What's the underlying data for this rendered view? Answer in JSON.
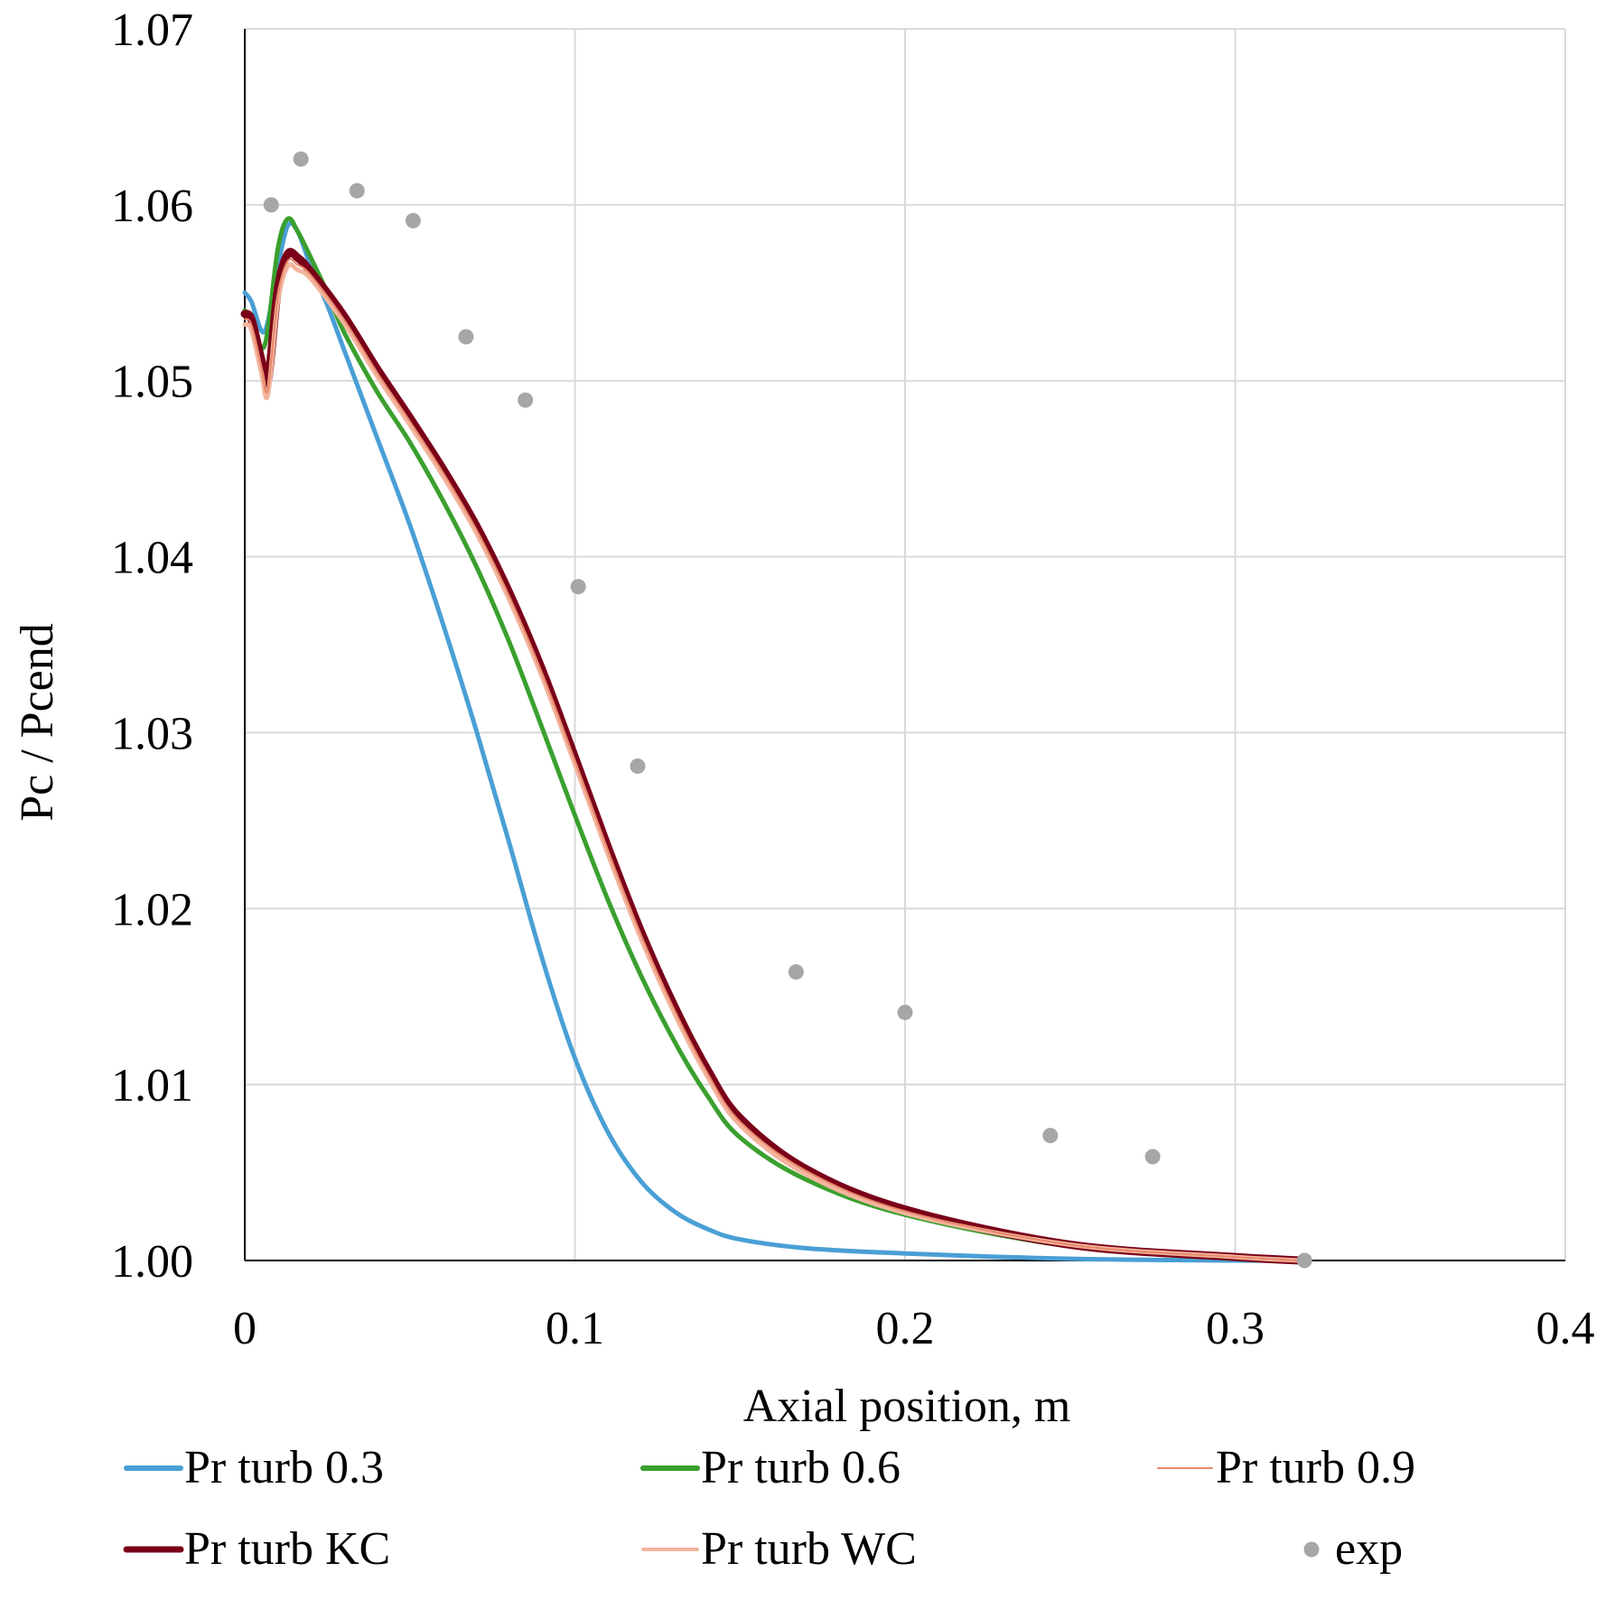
{
  "chart_data": {
    "type": "line",
    "title": "",
    "xlabel": "Axial position, m",
    "ylabel": "Pc / Pcend",
    "xlim": [
      0,
      0.4
    ],
    "ylim": [
      1.0,
      1.07
    ],
    "x_ticks": [
      {
        "value": 0,
        "label": "0"
      },
      {
        "value": 0.1,
        "label": "0.1"
      },
      {
        "value": 0.2,
        "label": "0.2"
      },
      {
        "value": 0.3,
        "label": "0.3"
      },
      {
        "value": 0.4,
        "label": "0.4"
      }
    ],
    "y_ticks": [
      {
        "value": 1.0,
        "label": "1.00"
      },
      {
        "value": 1.01,
        "label": "1.01"
      },
      {
        "value": 1.02,
        "label": "1.02"
      },
      {
        "value": 1.03,
        "label": "1.03"
      },
      {
        "value": 1.04,
        "label": "1.04"
      },
      {
        "value": 1.05,
        "label": "1.05"
      },
      {
        "value": 1.06,
        "label": "1.06"
      },
      {
        "value": 1.07,
        "label": "1.07"
      }
    ],
    "grid": true,
    "legend_position": "bottom",
    "series": [
      {
        "name": "Pr turb 0.3",
        "kind": "line",
        "color": "#4a9fd5",
        "x": [
          0,
          0.002,
          0.006,
          0.01,
          0.013,
          0.016,
          0.02,
          0.025,
          0.03,
          0.04,
          0.05,
          0.06,
          0.07,
          0.08,
          0.09,
          0.1,
          0.11,
          0.12,
          0.13,
          0.14,
          0.15,
          0.17,
          0.2,
          0.25,
          0.3,
          0.32
        ],
        "y": [
          1.055,
          1.0545,
          1.0528,
          1.0565,
          1.0588,
          1.0585,
          1.0565,
          1.0543,
          1.0518,
          1.0468,
          1.0418,
          1.0362,
          1.0302,
          1.0238,
          1.0172,
          1.0115,
          1.0073,
          1.0045,
          1.0028,
          1.0018,
          1.0012,
          1.0007,
          1.0004,
          1.0001,
          1.0,
          1.0
        ]
      },
      {
        "name": "Pr turb 0.6",
        "kind": "line",
        "color": "#3aa02e",
        "x": [
          0,
          0.002,
          0.006,
          0.01,
          0.013,
          0.016,
          0.02,
          0.025,
          0.03,
          0.04,
          0.05,
          0.06,
          0.07,
          0.08,
          0.09,
          0.1,
          0.11,
          0.12,
          0.13,
          0.14,
          0.15,
          0.17,
          0.2,
          0.25,
          0.3,
          0.32
        ],
        "y": [
          1.054,
          1.0535,
          1.052,
          1.0575,
          1.0592,
          1.0585,
          1.057,
          1.055,
          1.0528,
          1.0494,
          1.0465,
          1.0432,
          1.0395,
          1.0352,
          1.0303,
          1.0253,
          1.0205,
          1.0162,
          1.0125,
          1.0094,
          1.007,
          1.0046,
          1.0026,
          1.0008,
          1.0001,
          1.0
        ]
      },
      {
        "name": "Pr turb 0.9",
        "kind": "line",
        "color": "#e8896a",
        "x": [
          0,
          0.002,
          0.005,
          0.007,
          0.01,
          0.013,
          0.016,
          0.02,
          0.03,
          0.04,
          0.05,
          0.06,
          0.07,
          0.08,
          0.09,
          0.1,
          0.11,
          0.12,
          0.13,
          0.14,
          0.15,
          0.17,
          0.2,
          0.25,
          0.3,
          0.32
        ],
        "y": [
          1.0535,
          1.0532,
          1.0508,
          1.0495,
          1.0548,
          1.0568,
          1.0566,
          1.056,
          1.0535,
          1.0505,
          1.0477,
          1.0448,
          1.0416,
          1.0378,
          1.0334,
          1.0284,
          1.0233,
          1.0185,
          1.0143,
          1.0107,
          1.0079,
          1.0051,
          1.0028,
          1.0009,
          1.0002,
          1.0
        ]
      },
      {
        "name": "Pr turb KC",
        "kind": "line",
        "color": "#7a0019",
        "x": [
          0,
          0.002,
          0.005,
          0.007,
          0.01,
          0.013,
          0.016,
          0.02,
          0.03,
          0.04,
          0.05,
          0.06,
          0.07,
          0.08,
          0.09,
          0.1,
          0.11,
          0.12,
          0.13,
          0.14,
          0.15,
          0.17,
          0.2,
          0.25,
          0.3,
          0.32
        ],
        "y": [
          1.0538,
          1.0535,
          1.0512,
          1.05,
          1.0552,
          1.0572,
          1.057,
          1.0562,
          1.0537,
          1.0507,
          1.0479,
          1.045,
          1.0418,
          1.038,
          1.0336,
          1.0286,
          1.0235,
          1.0187,
          1.0145,
          1.0109,
          1.0081,
          1.0052,
          1.0029,
          1.0009,
          1.0002,
          1.0
        ]
      },
      {
        "name": "Pr turb WC",
        "kind": "line",
        "color": "#f4b49e",
        "x": [
          0,
          0.002,
          0.005,
          0.007,
          0.01,
          0.013,
          0.016,
          0.02,
          0.03,
          0.04,
          0.05,
          0.06,
          0.07,
          0.08,
          0.09,
          0.1,
          0.11,
          0.12,
          0.13,
          0.14,
          0.15,
          0.17,
          0.2,
          0.25,
          0.3,
          0.32
        ],
        "y": [
          1.0532,
          1.0529,
          1.0505,
          1.0492,
          1.0545,
          1.0565,
          1.0563,
          1.0558,
          1.0533,
          1.0503,
          1.0475,
          1.0446,
          1.0414,
          1.0376,
          1.0332,
          1.0282,
          1.0231,
          1.0183,
          1.0141,
          1.0105,
          1.0077,
          1.0049,
          1.0027,
          1.0009,
          1.0002,
          1.0
        ]
      },
      {
        "name": "exp",
        "kind": "scatter",
        "color": "#a6a6a6",
        "x": [
          0.008,
          0.017,
          0.034,
          0.051,
          0.067,
          0.085,
          0.101,
          0.119,
          0.167,
          0.2,
          0.244,
          0.275,
          0.321
        ],
        "y": [
          1.06,
          1.0626,
          1.0608,
          1.0591,
          1.0525,
          1.0489,
          1.0383,
          1.0281,
          1.0164,
          1.0141,
          1.0071,
          1.0059,
          1.0
        ]
      }
    ]
  }
}
